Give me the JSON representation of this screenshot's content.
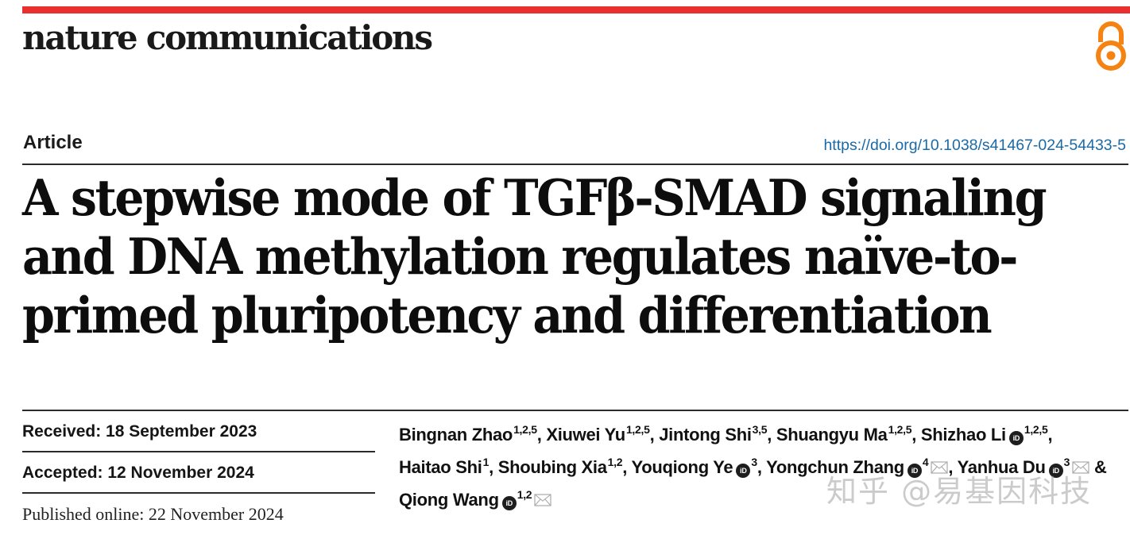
{
  "header": {
    "journal_name": "nature communications",
    "accent_color": "#e8312f",
    "open_access_icon": "open-access-lock-icon",
    "open_access_color": "#f68212"
  },
  "article": {
    "type": "Article",
    "doi": "https://doi.org/10.1038/s41467-024-54433-5",
    "title_lines": [
      "A stepwise mode of TGFβ-SMAD signaling",
      "and DNA methylation regulates naïve-to-",
      "primed pluripotency and differentiation"
    ]
  },
  "dates": {
    "received": "Received: 18 September 2023",
    "accepted": "Accepted: 12 November 2024",
    "published": "Published online: 22 November 2024"
  },
  "authors": [
    {
      "name": "Bingnan Zhao",
      "affil": "1,2,5",
      "orcid": false,
      "corresponding": false,
      "sep": ", "
    },
    {
      "name": "Xiuwei Yu",
      "affil": "1,2,5",
      "orcid": false,
      "corresponding": false,
      "sep": ", "
    },
    {
      "name": "Jintong Shi",
      "affil": "3,5",
      "orcid": false,
      "corresponding": false,
      "sep": ", "
    },
    {
      "name": "Shuangyu Ma",
      "affil": "1,2,5",
      "orcid": false,
      "corresponding": false,
      "sep": ", "
    },
    {
      "name": "Shizhao Li",
      "affil": "1,2,5",
      "orcid": true,
      "corresponding": false,
      "sep": ", "
    },
    {
      "name": "Haitao Shi",
      "affil": "1",
      "orcid": false,
      "corresponding": false,
      "sep": ", "
    },
    {
      "name": "Shoubing Xia",
      "affil": "1,2",
      "orcid": false,
      "corresponding": false,
      "sep": ", "
    },
    {
      "name": "Youqiong Ye",
      "affil": "3",
      "orcid": true,
      "corresponding": false,
      "sep": ", "
    },
    {
      "name": "Yongchun Zhang",
      "affil": "4",
      "orcid": true,
      "corresponding": true,
      "sep": ", "
    },
    {
      "name": "Yanhua Du",
      "affil": "3",
      "orcid": true,
      "corresponding": true,
      "sep": " & "
    },
    {
      "name": "Qiong Wang",
      "affil": "1,2",
      "orcid": true,
      "corresponding": true,
      "sep": ""
    }
  ],
  "orcid_label": "iD",
  "watermark": "知乎 @易基因科技"
}
